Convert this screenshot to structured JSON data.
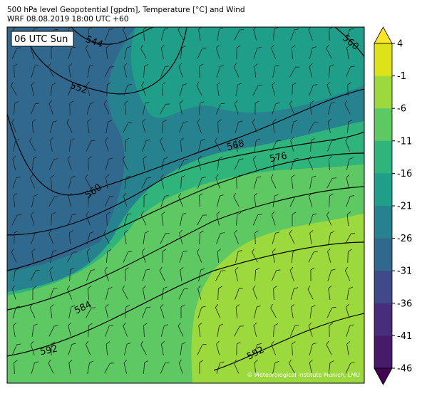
{
  "header": {
    "title": "500 hPa level Geopotential [gpdm], Temperature [°C] and Wind",
    "subtitle": "WRF 08.08.2019 18:00 UTC +60"
  },
  "map": {
    "time_label": "06 UTC Sun",
    "copyright": "© Meteorological Institute Munich, LMU",
    "contour_labels": [
      "544",
      "552",
      "560",
      "560",
      "568",
      "576",
      "584",
      "592",
      "592"
    ]
  },
  "colorbar": {
    "ticks": [
      4,
      -1,
      -6,
      -11,
      -16,
      -21,
      -26,
      -31,
      -36,
      -41,
      -46
    ],
    "colors": [
      "#fde725",
      "#dde318",
      "#9bd93c",
      "#5ec962",
      "#2fb47c",
      "#1f9e89",
      "#26828e",
      "#31688e",
      "#3e4a89",
      "#472d7b",
      "#481a6c",
      "#440154"
    ]
  }
}
